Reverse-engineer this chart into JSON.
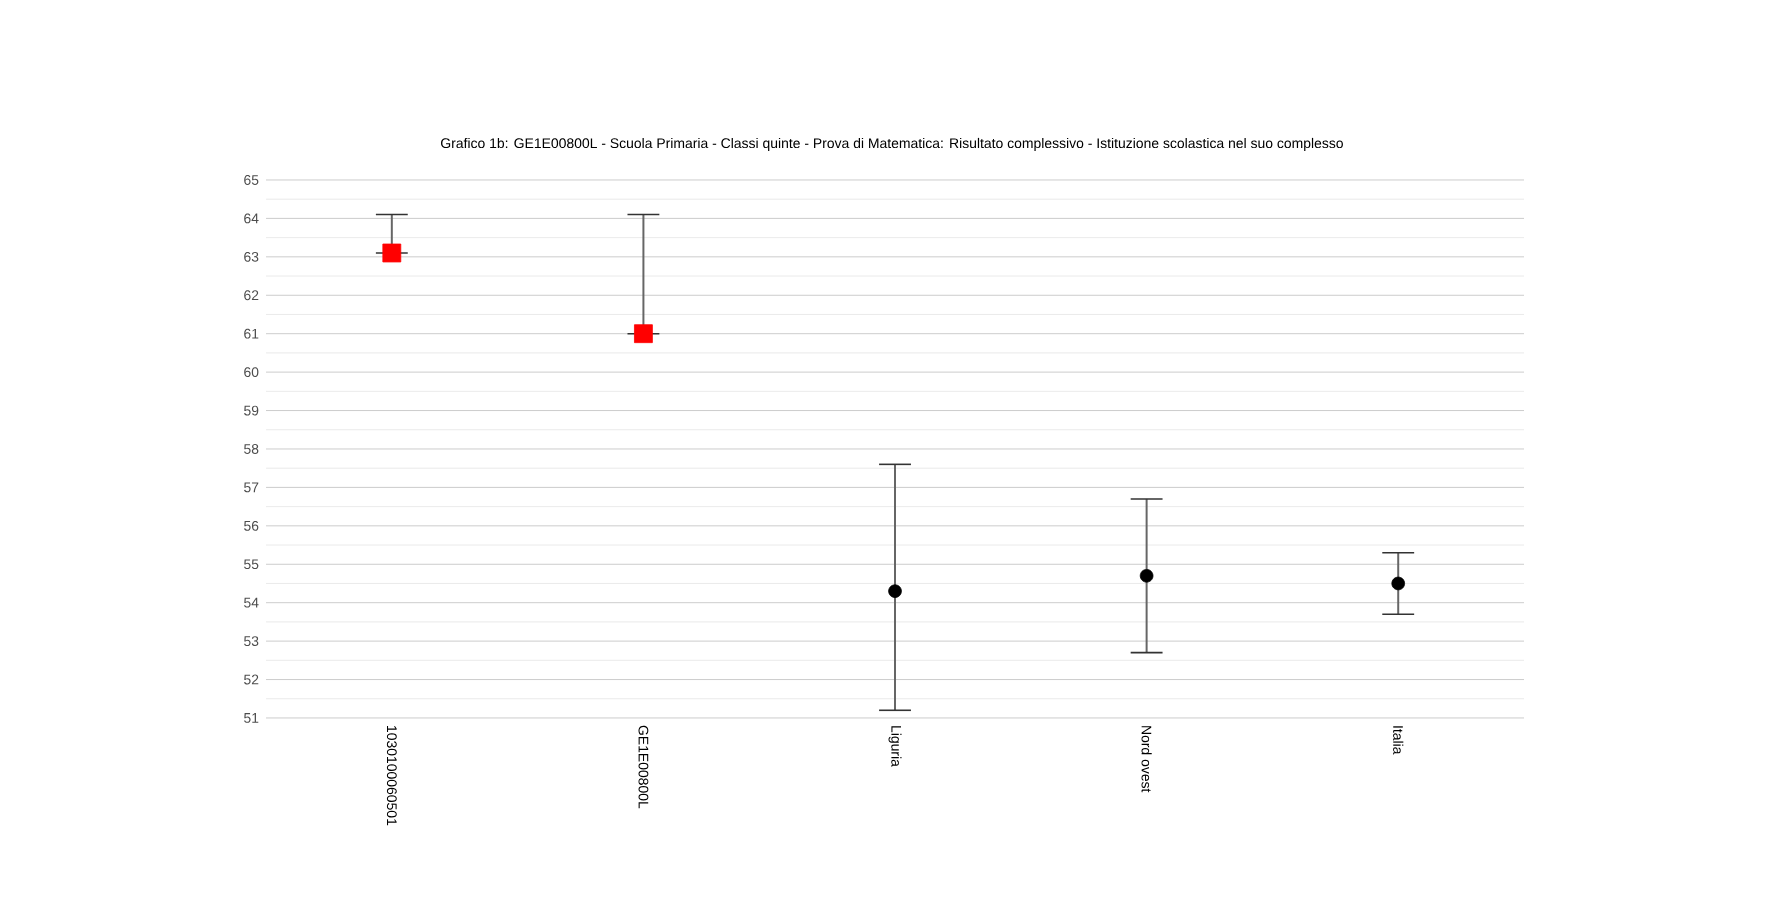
{
  "chart_data": {
    "type": "scatter",
    "title": "Grafico 1b: GE1E00800L - Scuola Primaria - Classi quinte - Prova di Matematica: Risultato complessivo - Istituzione scolastica nel suo complesso",
    "categories": [
      "1030100060501",
      "GE1E00800L",
      "Liguria",
      "Nord ovest",
      "Italia"
    ],
    "series": [
      {
        "color": "#ff0000",
        "marker": "square",
        "values": [
          63.1,
          61.0,
          null,
          null,
          null
        ],
        "errors": [
          [
            63.1,
            64.1
          ],
          [
            61.0,
            64.1
          ],
          null,
          null,
          null
        ]
      },
      {
        "color": "#000000",
        "marker": "circle",
        "values": [
          null,
          null,
          54.3,
          54.7,
          54.5
        ],
        "errors": [
          null,
          null,
          [
            51.2,
            57.6
          ],
          [
            52.7,
            56.7
          ],
          [
            53.7,
            55.3
          ]
        ]
      }
    ],
    "ylim": [
      51,
      65
    ],
    "yticks": [
      51,
      52,
      53,
      54,
      55,
      56,
      57,
      58,
      59,
      60,
      61,
      62,
      63,
      64,
      65
    ],
    "grid": "y"
  }
}
